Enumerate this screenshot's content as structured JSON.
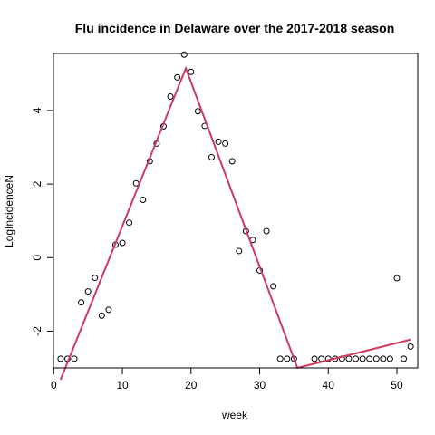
{
  "chart_data": {
    "type": "scatter",
    "title": "Flu incidence in Delaware over the 2017-2018 season",
    "xlabel": "week",
    "ylabel": "LogIncidenceN",
    "xlim": [
      -0.04,
      53.04
    ],
    "ylim": [
      -3.0,
      5.55
    ],
    "xticks": [
      0,
      10,
      20,
      30,
      40,
      50
    ],
    "yticks": [
      -2,
      0,
      2,
      4
    ],
    "grid": false,
    "legend": "none",
    "point_color": "#000000",
    "line_color": "#CD3A5F",
    "points": {
      "x": [
        1,
        2,
        3,
        4,
        5,
        6,
        7,
        8,
        9,
        10,
        11,
        12,
        13,
        14,
        15,
        16,
        17,
        18,
        19,
        20,
        21,
        22,
        23,
        24,
        25,
        26,
        27,
        28,
        29,
        30,
        31,
        32,
        33,
        34,
        35,
        38,
        39,
        40,
        41,
        42,
        43,
        44,
        45,
        46,
        47,
        48,
        49,
        50,
        51,
        52
      ],
      "y": [
        -2.75,
        -2.75,
        -2.75,
        -1.22,
        -0.92,
        -0.55,
        -1.58,
        -1.42,
        0.35,
        0.4,
        0.95,
        2.02,
        1.57,
        2.62,
        3.1,
        3.57,
        4.38,
        4.9,
        5.52,
        5.05,
        3.98,
        3.58,
        2.73,
        3.15,
        3.1,
        2.62,
        0.18,
        0.72,
        0.48,
        -0.35,
        0.72,
        -0.78,
        -2.75,
        -2.75,
        -2.75,
        -2.75,
        -2.75,
        -2.75,
        -2.75,
        -2.75,
        -2.75,
        -2.75,
        -2.75,
        -2.75,
        -2.75,
        -2.75,
        -2.75,
        -0.56,
        -2.75,
        -2.42
      ]
    },
    "fitted_line": {
      "x": [
        1,
        19.25,
        35.5,
        52
      ],
      "y": [
        -3.32,
        5.15,
        -3.0,
        -2.23
      ]
    }
  }
}
